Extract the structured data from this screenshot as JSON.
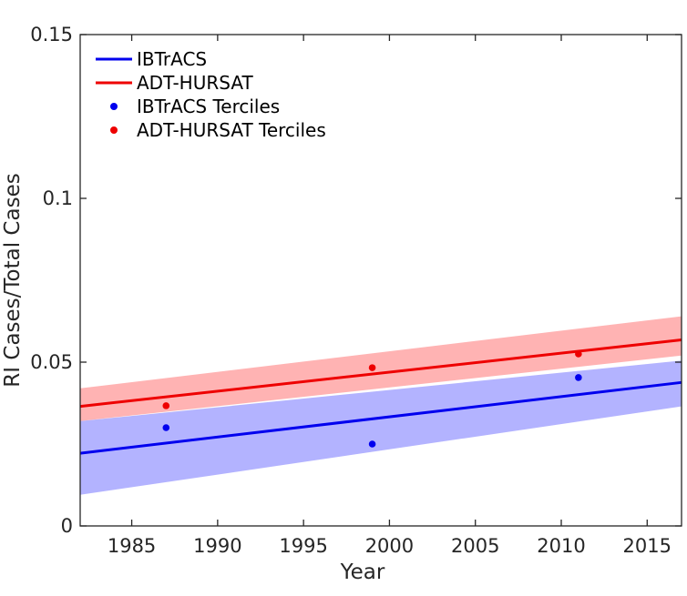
{
  "chart_data": {
    "type": "line",
    "title": "",
    "xlabel": "Year",
    "ylabel": "RI Cases/Total Cases",
    "xlim": [
      1982,
      2017
    ],
    "ylim": [
      0,
      0.15
    ],
    "grid": false,
    "legend_position": "top-left",
    "x_ticks": [
      1985,
      1990,
      1995,
      2000,
      2005,
      2010,
      2015
    ],
    "x_tick_labels": [
      "1985",
      "1990",
      "1995",
      "2000",
      "2005",
      "2010",
      "2015"
    ],
    "y_ticks": [
      0,
      0.05,
      0.1,
      0.15
    ],
    "y_tick_labels": [
      "0",
      "0.05",
      "0.1",
      "0.15"
    ],
    "series": [
      {
        "name": "IBTrACS",
        "kind": "line",
        "color": "#0000ee",
        "x": [
          1982,
          2017
        ],
        "y": [
          0.0222,
          0.0438
        ],
        "band_lower": [
          0.0095,
          0.0365
        ],
        "band_upper": [
          0.032,
          0.0505
        ],
        "band_color": "#8080ff"
      },
      {
        "name": "ADT-HURSAT",
        "kind": "line",
        "color": "#ee0000",
        "x": [
          1982,
          2017
        ],
        "y": [
          0.0365,
          0.0568
        ],
        "band_lower": [
          0.032,
          0.052
        ],
        "band_upper": [
          0.042,
          0.064
        ],
        "band_color": "#ff8080"
      },
      {
        "name": "IBTrACS Terciles",
        "kind": "scatter",
        "color": "#0000ee",
        "x": [
          1987,
          1999,
          2011
        ],
        "y": [
          0.03,
          0.025,
          0.0453
        ]
      },
      {
        "name": "ADT-HURSAT Terciles",
        "kind": "scatter",
        "color": "#ee0000",
        "x": [
          1987,
          1999,
          2011
        ],
        "y": [
          0.0367,
          0.0483,
          0.0525
        ]
      }
    ]
  }
}
